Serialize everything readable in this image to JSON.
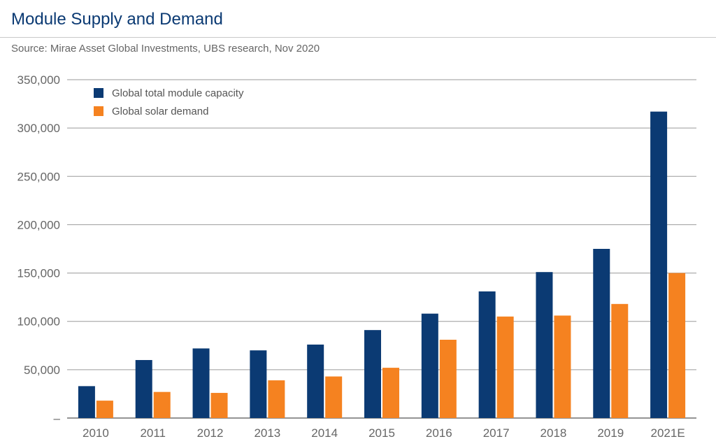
{
  "header": {
    "title": "Module Supply and Demand",
    "source": "Source: Mirae Asset Global Investments, UBS research, Nov 2020"
  },
  "chart_data": {
    "type": "bar",
    "title": "Module Supply and Demand",
    "xlabel": "",
    "ylabel": "",
    "ylim": [
      0,
      350000
    ],
    "yticks": [
      0,
      50000,
      100000,
      150000,
      200000,
      250000,
      300000,
      350000
    ],
    "ytick_labels": [
      "–",
      "50,000",
      "100,000",
      "150,000",
      "200,000",
      "250,000",
      "300,000",
      "350,000"
    ],
    "grid": true,
    "legend_position": "top-left",
    "categories": [
      "2010",
      "2011",
      "2012",
      "2013",
      "2014",
      "2015",
      "2016",
      "2017",
      "2018",
      "2019",
      "2021E"
    ],
    "series": [
      {
        "name": "Global total module capacity",
        "color": "#0b3a73",
        "values": [
          33000,
          60000,
          72000,
          70000,
          76000,
          91000,
          108000,
          131000,
          151000,
          175000,
          317000
        ]
      },
      {
        "name": "Global solar demand",
        "color": "#f58220",
        "values": [
          18000,
          27000,
          26000,
          39000,
          43000,
          52000,
          81000,
          105000,
          106000,
          118000,
          150000
        ]
      }
    ]
  }
}
